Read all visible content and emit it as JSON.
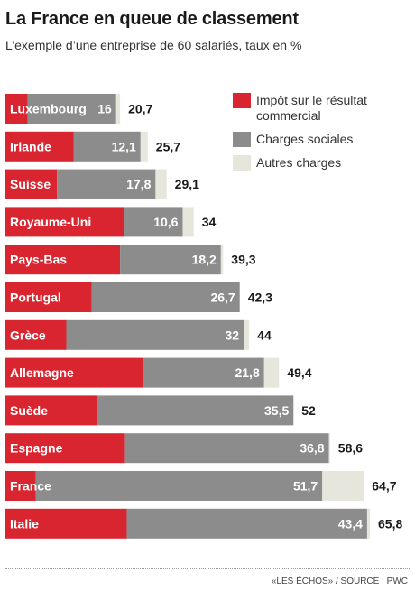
{
  "title": "La France en queue de classement",
  "subtitle": "L’exemple d’une entreprise de 60 salariés, taux en %",
  "source": "«LES ÉCHOS» / SOURCE : PWC",
  "legend": [
    {
      "label": "Impôt sur le résultat commercial",
      "color": "#d9252f"
    },
    {
      "label": "Charges sociales",
      "color": "#8c8c8c"
    },
    {
      "label": "Autres charges",
      "color": "#e6e6dc"
    }
  ],
  "chart_data": {
    "type": "bar",
    "orientation": "horizontal",
    "stacked": true,
    "categories": [
      "Luxembourg",
      "Irlande",
      "Suisse",
      "Royaume-Uni",
      "Pays-Bas",
      "Portugal",
      "Grèce",
      "Allemagne",
      "Suède",
      "Espagne",
      "France",
      "Italie"
    ],
    "series": [
      {
        "name": "Impôt sur le résultat commercial",
        "color": "#d9252f",
        "values": [
          4.0,
          12.3,
          9.3,
          21.4,
          20.7,
          15.6,
          11.0,
          24.9,
          16.5,
          21.6,
          5.5,
          21.9
        ]
      },
      {
        "name": "Charges sociales",
        "color": "#8c8c8c",
        "value_labels": true,
        "values": [
          16,
          12.1,
          17.8,
          10.6,
          18.2,
          26.7,
          32,
          21.8,
          35.5,
          36.8,
          51.7,
          43.4
        ]
      },
      {
        "name": "Autres charges",
        "color": "#e6e6dc",
        "values": [
          0.7,
          1.3,
          2.0,
          2.0,
          0.4,
          0.0,
          1.0,
          2.7,
          0.0,
          0.2,
          7.5,
          0.5
        ]
      }
    ],
    "totals": [
      20.7,
      25.7,
      29.1,
      34,
      39.3,
      42.3,
      44,
      49.4,
      52,
      58.6,
      64.7,
      65.8
    ],
    "category_label_color": "#ffffff",
    "total_label_color": "#1a1a1a"
  }
}
